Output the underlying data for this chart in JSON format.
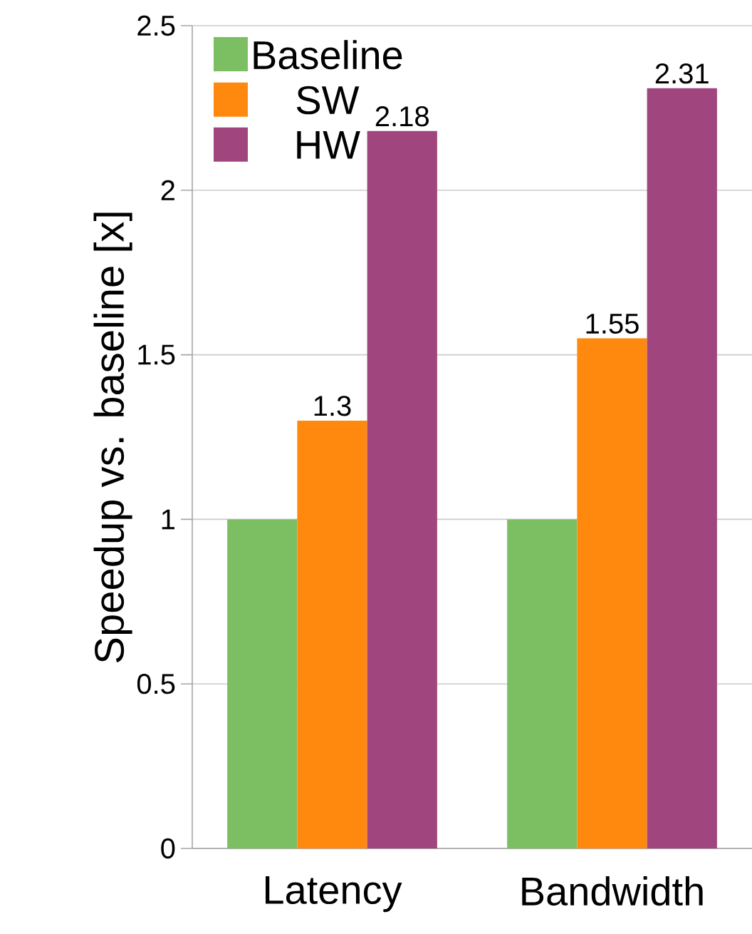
{
  "chart_data": {
    "type": "bar",
    "ylabel": "Speedup vs. baseline [x]",
    "categories": [
      "Latency",
      "Bandwidth"
    ],
    "series": [
      {
        "name": "Baseline",
        "color": "#7bbf62",
        "values": [
          1,
          1
        ]
      },
      {
        "name": "SW",
        "color": "#ff880e",
        "values": [
          1.3,
          1.55
        ],
        "value_labels": [
          "1.3",
          "1.55"
        ]
      },
      {
        "name": "HW",
        "color": "#a0457d",
        "values": [
          2.18,
          2.31
        ],
        "value_labels": [
          "2.18",
          "2.31"
        ]
      }
    ],
    "ylim": [
      0,
      2.5
    ],
    "yticks": [
      0,
      0.5,
      1,
      1.5,
      2,
      2.5
    ],
    "grid": "y",
    "legend": "top left"
  }
}
